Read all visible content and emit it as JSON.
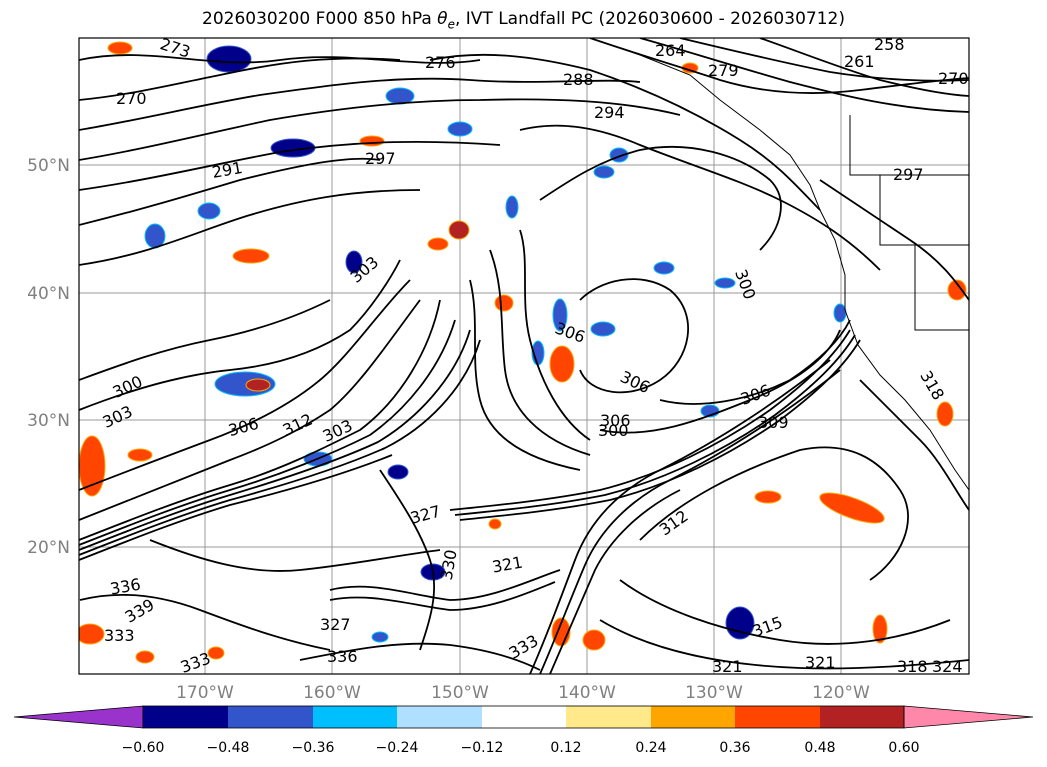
{
  "title": {
    "prefix": "2026030200 F000 850 hPa ",
    "symbol": "θ",
    "subscript": "e",
    "suffix": ", IVT Landfall PC (2026030600 - 2026030712)"
  },
  "lat_labels": [
    "50°N",
    "40°N",
    "30°N",
    "20°N"
  ],
  "lon_labels": [
    "170°W",
    "160°W",
    "150°W",
    "140°W",
    "130°W",
    "120°W"
  ],
  "colorbar": {
    "colors": [
      "#9933cc",
      "#00008b",
      "#3355cc",
      "#00bfff",
      "#b0e0ff",
      "#ffffff",
      "#ffe98a",
      "#ffa500",
      "#ff4500",
      "#b22222",
      "#ff88aa"
    ],
    "tick_labels": [
      "−0.60",
      "−0.48",
      "−0.36",
      "−0.24",
      "−0.12",
      "0.12",
      "0.24",
      "0.36",
      "0.48",
      "0.60"
    ]
  },
  "contour_labels": [
    {
      "text": "273"
    },
    {
      "text": "270"
    },
    {
      "text": "276"
    },
    {
      "text": "288"
    },
    {
      "text": "294"
    },
    {
      "text": "264"
    },
    {
      "text": "279"
    },
    {
      "text": "258"
    },
    {
      "text": "261"
    },
    {
      "text": "270"
    },
    {
      "text": "291"
    },
    {
      "text": "297"
    },
    {
      "text": "297"
    },
    {
      "text": "303"
    },
    {
      "text": "300"
    },
    {
      "text": "306"
    },
    {
      "text": "300"
    },
    {
      "text": "303"
    },
    {
      "text": "306"
    },
    {
      "text": "312"
    },
    {
      "text": "303"
    },
    {
      "text": "306"
    },
    {
      "text": "306"
    },
    {
      "text": "300"
    },
    {
      "text": "306"
    },
    {
      "text": "309"
    },
    {
      "text": "312"
    },
    {
      "text": "318"
    },
    {
      "text": "327"
    },
    {
      "text": "330"
    },
    {
      "text": "321"
    },
    {
      "text": "336"
    },
    {
      "text": "339"
    },
    {
      "text": "333"
    },
    {
      "text": "327"
    },
    {
      "text": "333"
    },
    {
      "text": "336"
    },
    {
      "text": "333"
    },
    {
      "text": "315"
    },
    {
      "text": "321"
    },
    {
      "text": "321"
    },
    {
      "text": "318"
    },
    {
      "text": "324"
    }
  ]
}
